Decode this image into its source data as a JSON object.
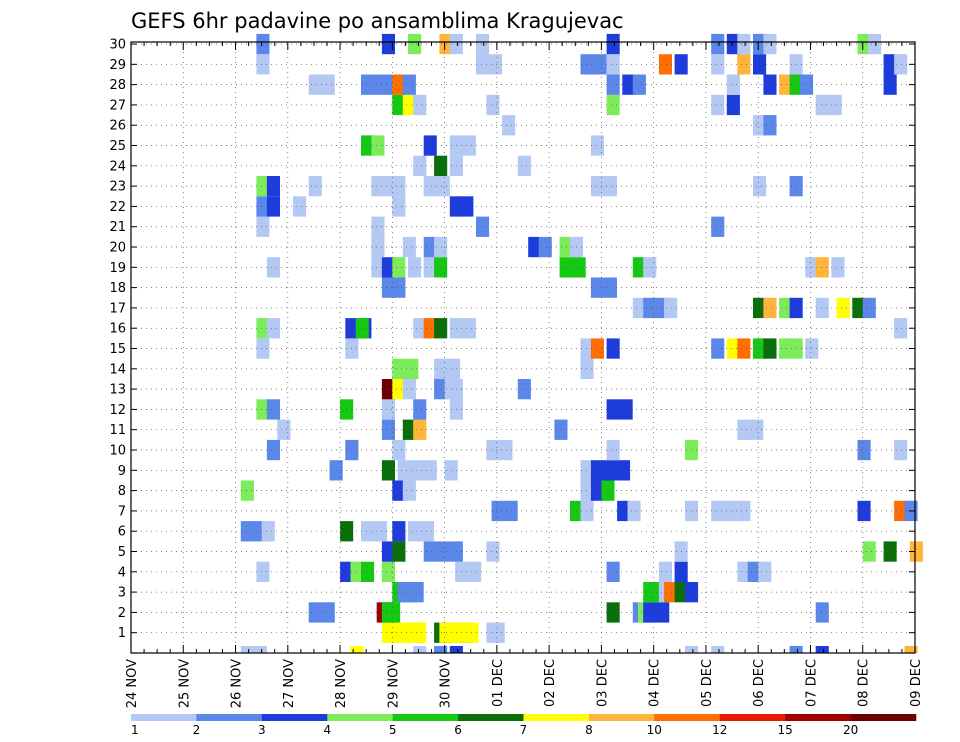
{
  "chart_data": {
    "type": "heatmap",
    "title": "GEFS 6hr padavine po ansamblima Kragujevac",
    "xlabel": "",
    "ylabel": "",
    "x_tick_labels": [
      "24 NOV",
      "25 NOV",
      "26 NOV",
      "27 NOV",
      "28 NOV",
      "29 NOV",
      "30 NOV",
      "01 DEC",
      "02 DEC",
      "03 DEC",
      "04 DEC",
      "05 DEC",
      "06 DEC",
      "07 DEC",
      "08 DEC",
      "09 DEC"
    ],
    "y_ticks": [
      1,
      2,
      3,
      4,
      5,
      6,
      7,
      8,
      9,
      10,
      11,
      12,
      13,
      14,
      15,
      16,
      17,
      18,
      19,
      20,
      21,
      22,
      23,
      24,
      25,
      26,
      27,
      28,
      29,
      30
    ],
    "ylim": [
      0,
      30
    ],
    "x_range_days": [
      0,
      15
    ],
    "step_hours": 6,
    "grid": true,
    "colorbar": {
      "labels": [
        "1",
        "2",
        "3",
        "4",
        "5",
        "6",
        "7",
        "8",
        "10",
        "12",
        "15",
        "20"
      ],
      "colors": [
        "#b4c8f4",
        "#5a87e8",
        "#1e3cdc",
        "#7cec5a",
        "#14c814",
        "#0a6e0a",
        "#ffff00",
        "#ffb43c",
        "#ff6e00",
        "#e61e00",
        "#a00000",
        "#6e0000"
      ]
    },
    "values": [
      [
        1,
        4.8,
        3,
        7
      ],
      [
        1,
        4.9,
        3,
        7
      ],
      [
        1,
        5.8,
        3,
        6
      ],
      [
        1,
        5.9,
        3,
        7
      ],
      [
        1,
        6.8,
        1,
        1
      ],
      [
        1,
        6.9,
        1,
        1
      ],
      [
        2,
        3.4,
        2,
        2
      ],
      [
        2,
        4.7,
        1,
        11
      ],
      [
        2,
        4.8,
        1,
        5
      ],
      [
        2,
        4.9,
        1,
        5
      ],
      [
        2,
        9.1,
        1,
        6
      ],
      [
        2,
        9.6,
        1,
        2
      ],
      [
        2,
        9.7,
        1,
        4
      ],
      [
        2,
        9.8,
        2,
        3
      ],
      [
        2,
        13.1,
        1,
        2
      ],
      [
        3,
        5.0,
        2,
        5
      ],
      [
        3,
        5.1,
        2,
        2
      ],
      [
        3,
        9.8,
        2,
        5
      ],
      [
        3,
        10.1,
        1,
        1
      ],
      [
        3,
        10.2,
        1,
        9
      ],
      [
        3,
        10.4,
        1,
        6
      ],
      [
        3,
        10.6,
        1,
        3
      ],
      [
        4,
        2.4,
        1,
        1
      ],
      [
        4,
        4.0,
        1,
        3
      ],
      [
        4,
        4.2,
        1,
        4
      ],
      [
        4,
        4.4,
        1,
        5
      ],
      [
        4,
        4.8,
        1,
        4
      ],
      [
        4,
        6.2,
        2,
        1
      ],
      [
        4,
        9.1,
        1,
        2
      ],
      [
        4,
        10.1,
        1,
        1
      ],
      [
        4,
        10.4,
        1,
        3
      ],
      [
        4,
        11.6,
        1,
        1
      ],
      [
        4,
        11.8,
        1,
        2
      ],
      [
        4,
        12.0,
        1,
        1
      ],
      [
        5,
        4.8,
        1,
        3
      ],
      [
        5,
        5.0,
        1,
        6
      ],
      [
        5,
        5.6,
        3,
        2
      ],
      [
        5,
        6.8,
        1,
        1
      ],
      [
        5,
        10.4,
        1,
        1
      ],
      [
        5,
        14.0,
        1,
        4
      ],
      [
        5,
        14.4,
        1,
        6
      ],
      [
        5,
        14.9,
        1,
        8
      ],
      [
        6,
        2.1,
        2,
        2
      ],
      [
        6,
        2.5,
        1,
        1
      ],
      [
        6,
        4.0,
        1,
        6
      ],
      [
        6,
        4.4,
        2,
        1
      ],
      [
        6,
        5.0,
        1,
        3
      ],
      [
        6,
        5.3,
        2,
        1
      ],
      [
        7,
        6.9,
        2,
        2
      ],
      [
        7,
        8.4,
        1,
        5
      ],
      [
        7,
        8.6,
        1,
        1
      ],
      [
        7,
        9.3,
        1,
        3
      ],
      [
        7,
        9.5,
        1,
        1
      ],
      [
        7,
        10.6,
        1,
        1
      ],
      [
        7,
        11.1,
        2,
        1
      ],
      [
        7,
        11.6,
        1,
        1
      ],
      [
        7,
        13.9,
        1,
        3
      ],
      [
        7,
        14.6,
        1,
        9
      ],
      [
        7,
        14.8,
        1,
        2
      ],
      [
        8,
        2.1,
        1,
        4
      ],
      [
        8,
        5.0,
        1,
        3
      ],
      [
        8,
        5.2,
        1,
        1
      ],
      [
        8,
        8.6,
        1,
        1
      ],
      [
        8,
        8.8,
        1,
        3
      ],
      [
        8,
        9.0,
        1,
        5
      ],
      [
        9,
        3.8,
        1,
        2
      ],
      [
        9,
        4.8,
        1,
        6
      ],
      [
        9,
        5.1,
        3,
        1
      ],
      [
        9,
        6.0,
        1,
        1
      ],
      [
        9,
        8.6,
        1,
        1
      ],
      [
        9,
        8.8,
        3,
        3
      ],
      [
        10,
        2.6,
        1,
        2
      ],
      [
        10,
        4.1,
        1,
        2
      ],
      [
        10,
        5.0,
        1,
        1
      ],
      [
        10,
        6.8,
        2,
        1
      ],
      [
        10,
        9.1,
        1,
        1
      ],
      [
        10,
        10.6,
        1,
        4
      ],
      [
        10,
        13.9,
        1,
        2
      ],
      [
        10,
        14.6,
        1,
        1
      ],
      [
        11,
        2.8,
        1,
        1
      ],
      [
        11,
        4.8,
        1,
        2
      ],
      [
        11,
        5.2,
        1,
        6
      ],
      [
        11,
        5.4,
        1,
        8
      ],
      [
        11,
        8.1,
        1,
        2
      ],
      [
        11,
        11.6,
        2,
        1
      ],
      [
        12,
        2.4,
        1,
        4
      ],
      [
        12,
        2.6,
        1,
        2
      ],
      [
        12,
        4.0,
        1,
        5
      ],
      [
        12,
        4.8,
        1,
        1
      ],
      [
        12,
        5.4,
        1,
        2
      ],
      [
        12,
        6.1,
        1,
        1
      ],
      [
        12,
        9.1,
        2,
        3
      ],
      [
        13,
        4.8,
        1,
        12
      ],
      [
        13,
        5.0,
        1,
        7
      ],
      [
        13,
        5.2,
        1,
        1
      ],
      [
        13,
        5.8,
        1,
        2
      ],
      [
        13,
        6.0,
        1,
        1
      ],
      [
        13,
        6.1,
        1,
        1
      ],
      [
        13,
        7.4,
        1,
        2
      ],
      [
        14,
        5.0,
        2,
        4
      ],
      [
        14,
        5.8,
        2,
        1
      ],
      [
        14,
        8.6,
        1,
        1
      ],
      [
        15,
        2.4,
        1,
        1
      ],
      [
        15,
        4.1,
        1,
        1
      ],
      [
        15,
        8.6,
        1,
        1
      ],
      [
        15,
        8.8,
        1,
        9
      ],
      [
        15,
        9.1,
        1,
        3
      ],
      [
        15,
        11.1,
        1,
        2
      ],
      [
        15,
        11.4,
        1,
        7
      ],
      [
        15,
        11.6,
        1,
        9
      ],
      [
        15,
        11.9,
        1,
        5
      ],
      [
        15,
        12.1,
        1,
        6
      ],
      [
        15,
        12.4,
        1,
        4
      ],
      [
        15,
        12.6,
        1,
        4
      ],
      [
        15,
        12.9,
        1,
        1
      ],
      [
        16,
        2.4,
        1,
        4
      ],
      [
        16,
        2.6,
        1,
        1
      ],
      [
        16,
        4.1,
        2,
        3
      ],
      [
        16,
        4.3,
        1,
        5
      ],
      [
        16,
        5.4,
        1,
        1
      ],
      [
        16,
        5.6,
        1,
        9
      ],
      [
        16,
        5.8,
        1,
        6
      ],
      [
        16,
        6.1,
        2,
        1
      ],
      [
        16,
        14.6,
        1,
        1
      ],
      [
        17,
        9.6,
        1,
        1
      ],
      [
        17,
        9.8,
        2,
        2
      ],
      [
        17,
        10.2,
        1,
        1
      ],
      [
        17,
        11.9,
        1,
        6
      ],
      [
        17,
        12.1,
        1,
        8
      ],
      [
        17,
        12.4,
        1,
        4
      ],
      [
        17,
        12.6,
        1,
        3
      ],
      [
        17,
        13.1,
        1,
        1
      ],
      [
        17,
        13.5,
        1,
        7
      ],
      [
        17,
        13.8,
        1,
        6
      ],
      [
        17,
        14.0,
        1,
        2
      ],
      [
        18,
        4.8,
        1,
        2
      ],
      [
        18,
        5.0,
        1,
        2
      ],
      [
        18,
        8.8,
        2,
        2
      ],
      [
        19,
        2.6,
        1,
        1
      ],
      [
        19,
        4.6,
        1,
        1
      ],
      [
        19,
        4.8,
        1,
        3
      ],
      [
        19,
        5.0,
        1,
        4
      ],
      [
        19,
        5.3,
        1,
        1
      ],
      [
        19,
        5.6,
        1,
        1
      ],
      [
        19,
        5.8,
        1,
        5
      ],
      [
        19,
        8.2,
        2,
        5
      ],
      [
        19,
        9.6,
        1,
        5
      ],
      [
        19,
        9.8,
        1,
        1
      ],
      [
        19,
        12.9,
        1,
        1
      ],
      [
        19,
        13.1,
        1,
        8
      ],
      [
        19,
        13.4,
        1,
        1
      ],
      [
        20,
        4.6,
        1,
        1
      ],
      [
        20,
        5.2,
        1,
        1
      ],
      [
        20,
        5.6,
        1,
        2
      ],
      [
        20,
        5.8,
        1,
        1
      ],
      [
        20,
        7.6,
        1,
        3
      ],
      [
        20,
        7.8,
        1,
        2
      ],
      [
        20,
        8.2,
        1,
        4
      ],
      [
        20,
        8.4,
        1,
        1
      ],
      [
        21,
        2.4,
        1,
        1
      ],
      [
        21,
        4.6,
        1,
        1
      ],
      [
        21,
        6.6,
        1,
        2
      ],
      [
        21,
        11.1,
        1,
        2
      ],
      [
        22,
        2.4,
        1,
        2
      ],
      [
        22,
        2.6,
        1,
        3
      ],
      [
        22,
        3.1,
        1,
        1
      ],
      [
        22,
        5.0,
        1,
        1
      ],
      [
        22,
        6.1,
        1,
        3
      ],
      [
        22,
        6.3,
        1,
        3
      ],
      [
        23,
        2.4,
        1,
        4
      ],
      [
        23,
        2.6,
        1,
        3
      ],
      [
        23,
        3.4,
        1,
        1
      ],
      [
        23,
        4.6,
        2,
        1
      ],
      [
        23,
        5.0,
        1,
        1
      ],
      [
        23,
        5.6,
        2,
        1
      ],
      [
        23,
        8.8,
        2,
        1
      ],
      [
        23,
        11.9,
        1,
        1
      ],
      [
        23,
        12.6,
        1,
        2
      ],
      [
        24,
        5.4,
        1,
        1
      ],
      [
        24,
        5.8,
        1,
        6
      ],
      [
        24,
        6.1,
        1,
        1
      ],
      [
        24,
        7.4,
        1,
        1
      ],
      [
        25,
        4.4,
        1,
        5
      ],
      [
        25,
        4.6,
        1,
        4
      ],
      [
        25,
        5.6,
        1,
        3
      ],
      [
        25,
        6.1,
        2,
        1
      ],
      [
        25,
        8.8,
        1,
        1
      ],
      [
        26,
        7.1,
        1,
        1
      ],
      [
        26,
        11.9,
        1,
        1
      ],
      [
        26,
        12.1,
        1,
        2
      ],
      [
        27,
        5.0,
        1,
        5
      ],
      [
        27,
        5.2,
        1,
        7
      ],
      [
        27,
        5.4,
        1,
        1
      ],
      [
        27,
        6.8,
        1,
        1
      ],
      [
        27,
        9.1,
        1,
        4
      ],
      [
        27,
        11.1,
        1,
        1
      ],
      [
        27,
        11.4,
        1,
        3
      ],
      [
        27,
        13.1,
        2,
        1
      ],
      [
        28,
        3.4,
        2,
        1
      ],
      [
        28,
        4.4,
        2,
        2
      ],
      [
        28,
        4.8,
        1,
        2
      ],
      [
        28,
        5.0,
        1,
        9
      ],
      [
        28,
        5.2,
        1,
        2
      ],
      [
        28,
        9.1,
        1,
        2
      ],
      [
        28,
        9.4,
        1,
        3
      ],
      [
        28,
        9.6,
        1,
        2
      ],
      [
        28,
        11.4,
        1,
        1
      ],
      [
        28,
        12.1,
        1,
        3
      ],
      [
        28,
        12.4,
        1,
        8
      ],
      [
        28,
        12.6,
        1,
        5
      ],
      [
        28,
        12.8,
        1,
        2
      ],
      [
        28,
        14.4,
        1,
        3
      ],
      [
        29,
        2.4,
        1,
        1
      ],
      [
        29,
        6.6,
        2,
        1
      ],
      [
        29,
        8.6,
        2,
        2
      ],
      [
        29,
        9.1,
        1,
        1
      ],
      [
        29,
        10.1,
        1,
        9
      ],
      [
        29,
        10.4,
        1,
        3
      ],
      [
        29,
        11.1,
        1,
        1
      ],
      [
        29,
        11.6,
        1,
        8
      ],
      [
        29,
        11.9,
        1,
        3
      ],
      [
        29,
        12.6,
        1,
        1
      ],
      [
        29,
        14.4,
        1,
        3
      ],
      [
        29,
        14.6,
        1,
        1
      ],
      [
        30,
        2.4,
        1,
        2
      ],
      [
        30,
        4.8,
        1,
        3
      ],
      [
        30,
        5.3,
        1,
        4
      ],
      [
        30,
        5.9,
        1,
        8
      ],
      [
        30,
        6.1,
        1,
        1
      ],
      [
        30,
        6.6,
        1,
        1
      ],
      [
        30,
        9.1,
        1,
        3
      ],
      [
        30,
        11.1,
        1,
        2
      ],
      [
        30,
        11.4,
        1,
        3
      ],
      [
        30,
        11.6,
        1,
        1
      ],
      [
        30,
        11.9,
        1,
        2
      ],
      [
        30,
        12.1,
        1,
        1
      ],
      [
        30,
        13.9,
        1,
        4
      ],
      [
        30,
        14.1,
        1,
        1
      ],
      [
        0,
        2.1,
        2,
        1
      ],
      [
        0,
        4.2,
        1,
        7
      ],
      [
        0,
        5.4,
        1,
        1
      ],
      [
        0,
        5.8,
        1,
        2
      ],
      [
        0,
        6.1,
        1,
        3
      ],
      [
        0,
        10.6,
        1,
        1
      ],
      [
        0,
        11.1,
        1,
        1
      ],
      [
        0,
        12.6,
        1,
        2
      ],
      [
        0,
        13.1,
        1,
        3
      ],
      [
        0,
        14.8,
        1,
        8
      ]
    ]
  }
}
